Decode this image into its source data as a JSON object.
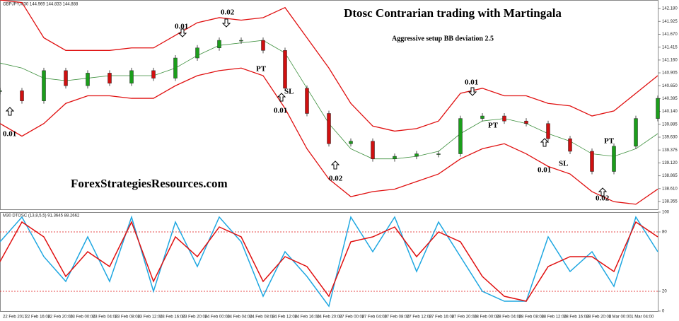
{
  "chart_data": {
    "type": "candlestick",
    "symbol_label": "GBPJPY,M30  144.969 144.833 144.888",
    "title": "Dtosc Contrarian trading with Martingala",
    "subtitle": "Aggressive setup BB deviation 2.5",
    "watermark": "ForexStrategiesResources.com",
    "close": [
      140.55,
      140.35,
      140.95,
      140.65,
      140.9,
      140.7,
      140.95,
      140.8,
      141.2,
      141.4,
      141.55,
      141.55,
      141.35,
      140.6,
      140.1,
      139.5,
      139.55,
      139.2,
      139.25,
      139.3,
      139.3,
      140.0,
      140.05,
      139.95,
      139.9,
      139.6,
      139.35,
      138.95,
      139.45,
      140.0,
      140.4
    ],
    "bands": [
      {
        "name": "upper",
        "color": "#e01010",
        "values": [
          142.35,
          142.3,
          141.6,
          141.35,
          141.35,
          141.35,
          141.4,
          141.4,
          141.65,
          141.9,
          142.0,
          141.95,
          142.0,
          142.2,
          141.6,
          141.0,
          140.3,
          139.85,
          139.75,
          139.8,
          139.95,
          140.5,
          140.6,
          140.45,
          140.45,
          140.3,
          140.25,
          140.05,
          140.15,
          140.5,
          140.85
        ]
      },
      {
        "name": "middle",
        "color": "#3c8f3c",
        "values": [
          141.1,
          141.0,
          140.8,
          140.75,
          140.8,
          140.85,
          140.85,
          140.85,
          141.0,
          141.25,
          141.45,
          141.5,
          141.55,
          141.3,
          140.6,
          139.9,
          139.4,
          139.2,
          139.2,
          139.25,
          139.35,
          139.7,
          139.95,
          140.0,
          139.9,
          139.7,
          139.55,
          139.3,
          139.25,
          139.4,
          139.7
        ]
      },
      {
        "name": "lower",
        "color": "#e01010",
        "values": [
          139.9,
          139.65,
          139.9,
          140.3,
          140.45,
          140.45,
          140.4,
          140.4,
          140.65,
          140.85,
          140.95,
          141.0,
          140.85,
          140.2,
          139.4,
          138.8,
          138.45,
          138.55,
          138.6,
          138.75,
          138.9,
          139.2,
          139.4,
          139.5,
          139.3,
          139.05,
          138.9,
          138.55,
          138.35,
          138.3,
          138.6
        ]
      }
    ],
    "ylim": [
      138.2,
      142.35
    ],
    "yticks": [
      138.355,
      {
        "value": 138.61,
        "label": "138.610"
      },
      138.865,
      {
        "value": 139.12,
        "label": "139.120"
      },
      139.375,
      {
        "value": 139.63,
        "label": "139.630"
      },
      139.885,
      {
        "value": 140.14,
        "label": "140.140"
      },
      140.395,
      {
        "value": 140.65,
        "label": "140.650"
      },
      140.905,
      {
        "value": 141.16,
        "label": "141.160"
      },
      141.415,
      {
        "value": 141.67,
        "label": "141.670"
      },
      141.925,
      {
        "value": 142.18,
        "label": "142.180"
      }
    ],
    "annotations": [
      "0.01",
      "0.02",
      "0.01",
      "PT",
      "SL",
      "0.01",
      "0.02",
      "0.01",
      "PT",
      "0.01",
      "SL",
      "0.02",
      "PT"
    ],
    "indicator": {
      "label": "M30 DTOSC (13,8,5,5) 91.3645 88.2662",
      "ylim": [
        0,
        100
      ],
      "yticks": [
        0,
        20,
        80,
        100
      ],
      "levels": [
        20,
        80
      ],
      "series": [
        {
          "name": "fast",
          "color": "#1ea7e1",
          "values": [
            70,
            95,
            55,
            30,
            75,
            30,
            95,
            20,
            90,
            45,
            95,
            70,
            15,
            60,
            35,
            5,
            95,
            60,
            95,
            40,
            90,
            55,
            20,
            10,
            10,
            75,
            40,
            60,
            25,
            95,
            60
          ]
        },
        {
          "name": "slow",
          "color": "#e01010",
          "values": [
            50,
            90,
            75,
            35,
            60,
            45,
            90,
            30,
            75,
            55,
            85,
            75,
            30,
            55,
            45,
            15,
            70,
            75,
            85,
            55,
            80,
            70,
            35,
            15,
            10,
            45,
            55,
            55,
            40,
            90,
            75
          ]
        }
      ]
    },
    "x_labels": [
      "22 Feb 2017",
      "22 Feb 16:00",
      "22 Feb 20:00",
      "23 Feb 00:00",
      "23 Feb 04:00",
      "23 Feb 08:00",
      "23 Feb 12:00",
      "23 Feb 16:00",
      "23 Feb 20:00",
      "24 Feb 00:00",
      "24 Feb 04:00",
      "24 Feb 08:00",
      "24 Feb 12:00",
      "24 Feb 16:00",
      "24 Feb 20:00",
      "27 Feb 00:00",
      "27 Feb 04:00",
      "27 Feb 08:00",
      "27 Feb 12:00",
      "27 Feb 16:00",
      "27 Feb 20:00",
      "28 Feb 00:00",
      "28 Feb 04:00",
      "28 Feb 08:00",
      "28 Feb 12:00",
      "28 Feb 16:00",
      "28 Feb 20:00",
      "1 Mar 00:00",
      "1 Mar 04:00"
    ]
  }
}
